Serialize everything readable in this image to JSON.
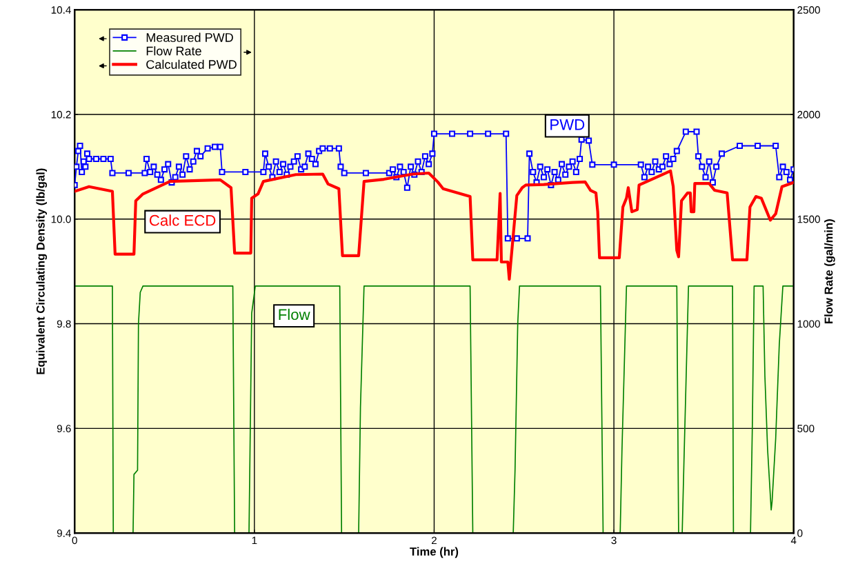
{
  "chart_data": {
    "type": "line",
    "xlabel": "Time (hr)",
    "ylabel": "Equivalent Circulating Density (lb/gal)",
    "y2label": "Flow Rate (gal/min)",
    "xlim": [
      0,
      4
    ],
    "xticks": [
      0,
      1,
      2,
      3,
      4
    ],
    "ylim": [
      9.4,
      10.4
    ],
    "yticks": [
      {
        "value": 9.4,
        "label": "9.4"
      },
      {
        "value": 9.6,
        "label": "9.6"
      },
      {
        "value": 9.8,
        "label": "9.8"
      },
      {
        "value": 10.0,
        "label": "10.0"
      },
      {
        "value": 10.2,
        "label": "10.2"
      },
      {
        "value": 10.4,
        "label": "10.4"
      }
    ],
    "y2lim": [
      0,
      2500
    ],
    "y2ticks": [
      0,
      500,
      1000,
      1500,
      2000,
      2500
    ],
    "grid": true,
    "legend": "top left",
    "annotations": [
      "PWD",
      "Calc ECD",
      "Flow"
    ],
    "series": [
      {
        "name": "Measured PWD",
        "color": "#0000ff",
        "marker": "square",
        "line_style": "solid",
        "x": [
          0,
          0.01,
          0.02,
          0.03,
          0.04,
          0.05,
          0.06,
          0.07,
          0.08,
          0.12,
          0.16,
          0.2,
          0.21,
          0.3,
          0.39,
          0.4,
          0.42,
          0.44,
          0.46,
          0.48,
          0.5,
          0.52,
          0.54,
          0.56,
          0.58,
          0.6,
          0.62,
          0.64,
          0.66,
          0.68,
          0.7,
          0.74,
          0.78,
          0.81,
          0.82,
          0.95,
          1.05,
          1.06,
          1.08,
          1.1,
          1.12,
          1.14,
          1.16,
          1.18,
          1.2,
          1.22,
          1.24,
          1.26,
          1.28,
          1.3,
          1.32,
          1.34,
          1.36,
          1.38,
          1.42,
          1.47,
          1.48,
          1.5,
          1.62,
          1.75,
          1.77,
          1.79,
          1.81,
          1.83,
          1.85,
          1.87,
          1.89,
          1.91,
          1.93,
          1.95,
          1.97,
          1.99,
          2.0,
          2.1,
          2.2,
          2.3,
          2.4,
          2.41,
          2.46,
          2.52,
          2.53,
          2.55,
          2.57,
          2.59,
          2.61,
          2.63,
          2.65,
          2.67,
          2.69,
          2.71,
          2.73,
          2.75,
          2.77,
          2.79,
          2.81,
          2.82,
          2.86,
          2.88,
          3.0,
          3.15,
          3.17,
          3.19,
          3.21,
          3.23,
          3.25,
          3.27,
          3.29,
          3.31,
          3.33,
          3.35,
          3.4,
          3.46,
          3.47,
          3.49,
          3.51,
          3.53,
          3.55,
          3.57,
          3.6,
          3.7,
          3.8,
          3.9,
          3.92,
          3.94,
          3.96,
          3.98,
          4.0
        ],
        "values": [
          10.065,
          10.1,
          10.13,
          10.14,
          10.09,
          10.11,
          10.1,
          10.125,
          10.115,
          10.115,
          10.115,
          10.115,
          10.088,
          10.088,
          10.088,
          10.115,
          10.09,
          10.1,
          10.085,
          10.075,
          10.095,
          10.105,
          10.07,
          10.08,
          10.1,
          10.085,
          10.12,
          10.095,
          10.11,
          10.13,
          10.12,
          10.135,
          10.138,
          10.138,
          10.09,
          10.09,
          10.09,
          10.125,
          10.1,
          10.08,
          10.11,
          10.09,
          10.105,
          10.085,
          10.1,
          10.11,
          10.12,
          10.095,
          10.1,
          10.125,
          10.115,
          10.105,
          10.13,
          10.135,
          10.135,
          10.135,
          10.1,
          10.088,
          10.088,
          10.088,
          10.095,
          10.08,
          10.1,
          10.09,
          10.06,
          10.1,
          10.085,
          10.11,
          10.09,
          10.12,
          10.105,
          10.125,
          10.163,
          10.163,
          10.163,
          10.163,
          10.163,
          9.963,
          9.963,
          9.963,
          10.125,
          10.09,
          10.07,
          10.1,
          10.08,
          10.095,
          10.065,
          10.09,
          10.075,
          10.105,
          10.085,
          10.1,
          10.11,
          10.09,
          10.115,
          10.152,
          10.15,
          10.104,
          10.104,
          10.104,
          10.08,
          10.1,
          10.09,
          10.11,
          10.095,
          10.1,
          10.12,
          10.105,
          10.115,
          10.13,
          10.167,
          10.167,
          10.12,
          10.1,
          10.08,
          10.11,
          10.07,
          10.1,
          10.125,
          10.14,
          10.14,
          10.14,
          10.08,
          10.1,
          10.09,
          10.075,
          10.095
        ]
      },
      {
        "name": "Flow Rate",
        "color": "#008000",
        "axis": "y2",
        "marker": "none",
        "line_style": "solid",
        "x": [
          0,
          0.1,
          0.21,
          0.215,
          0.325,
          0.33,
          0.35,
          0.355,
          0.365,
          0.38,
          0.6,
          0.88,
          0.89,
          0.97,
          0.975,
          0.985,
          1.005,
          1.3,
          1.475,
          1.485,
          1.58,
          1.59,
          1.61,
          1.9,
          2.2,
          2.215,
          2.44,
          2.45,
          2.465,
          2.475,
          2.7,
          2.925,
          2.94,
          3.035,
          3.045,
          3.07,
          3.2,
          3.35,
          3.36,
          3.38,
          3.39,
          3.415,
          3.5,
          3.66,
          3.665,
          3.76,
          3.77,
          3.78,
          3.8,
          3.83,
          3.84,
          3.855,
          3.875,
          3.88,
          3.9,
          3.92,
          3.94,
          4.0
        ],
        "values": [
          1180,
          1180,
          1180,
          0,
          0,
          280,
          300,
          1000,
          1150,
          1180,
          1180,
          1180,
          0,
          0,
          350,
          1050,
          1180,
          1180,
          1180,
          0,
          0,
          600,
          1180,
          1180,
          1180,
          0,
          0,
          300,
          1000,
          1180,
          1180,
          1180,
          0,
          0,
          400,
          1180,
          1180,
          1180,
          0,
          0,
          350,
          1180,
          1180,
          1180,
          0,
          0,
          500,
          1180,
          1180,
          1180,
          750,
          400,
          110,
          150,
          450,
          900,
          1180,
          1180
        ]
      },
      {
        "name": "Calculated PWD",
        "color": "#ff0000",
        "marker": "none",
        "line_style": "solid",
        "x": [
          0,
          0.08,
          0.21,
          0.225,
          0.33,
          0.34,
          0.38,
          0.53,
          0.81,
          0.87,
          0.89,
          0.98,
          0.985,
          1.02,
          1.05,
          1.23,
          1.38,
          1.41,
          1.47,
          1.49,
          1.58,
          1.61,
          1.72,
          1.88,
          1.97,
          2.02,
          2.05,
          2.14,
          2.2,
          2.215,
          2.35,
          2.367,
          2.374,
          2.41,
          2.418,
          2.46,
          2.49,
          2.51,
          2.61,
          2.77,
          2.84,
          2.87,
          2.9,
          2.91,
          2.92,
          3.03,
          3.05,
          3.07,
          3.08,
          3.1,
          3.13,
          3.14,
          3.315,
          3.33,
          3.35,
          3.36,
          3.376,
          3.41,
          3.425,
          3.43,
          3.445,
          3.45,
          3.53,
          3.56,
          3.63,
          3.66,
          3.74,
          3.757,
          3.79,
          3.82,
          3.87,
          3.9,
          3.935,
          4.0
        ],
        "values": [
          10.053,
          10.062,
          10.053,
          9.933,
          9.933,
          10.035,
          10.048,
          10.072,
          10.075,
          10.06,
          9.935,
          9.935,
          10.04,
          10.048,
          10.072,
          10.085,
          10.086,
          10.067,
          10.058,
          9.93,
          9.93,
          10.072,
          10.076,
          10.086,
          10.088,
          10.071,
          10.058,
          10.049,
          10.043,
          9.922,
          9.922,
          10.049,
          9.918,
          9.918,
          9.885,
          10.045,
          10.06,
          10.065,
          10.066,
          10.07,
          10.071,
          10.055,
          10.05,
          10.014,
          9.926,
          9.926,
          10.023,
          10.04,
          10.06,
          10.014,
          10.018,
          10.065,
          10.092,
          10.062,
          9.94,
          9.928,
          10.035,
          10.05,
          10.05,
          10.014,
          10.014,
          10.068,
          10.068,
          10.055,
          10.05,
          9.922,
          9.922,
          10.023,
          10.043,
          10.04,
          9.998,
          10.01,
          10.062,
          10.07
        ]
      }
    ]
  }
}
